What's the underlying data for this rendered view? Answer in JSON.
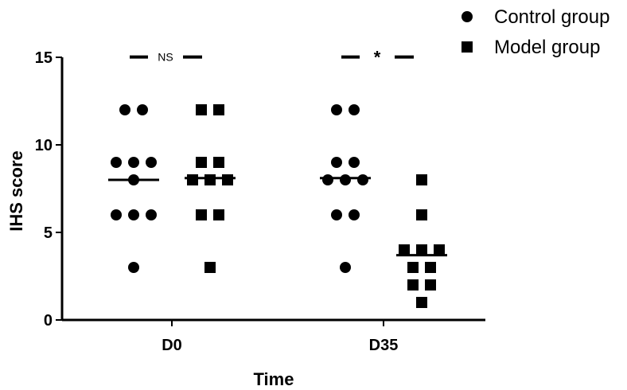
{
  "chart_data": {
    "type": "scatter",
    "title": "",
    "xlabel": "Time",
    "ylabel": "IHS score",
    "ylim": [
      0,
      15
    ],
    "yticks": [
      0,
      5,
      10,
      15
    ],
    "categories": [
      "D0",
      "D35"
    ],
    "legend": {
      "placement": "top-right"
    },
    "grid": false,
    "series": [
      {
        "name": "Control group",
        "marker": "circle",
        "color": "#000000",
        "groups": [
          {
            "category": "D0",
            "values": [
              12,
              12,
              9,
              9,
              9,
              8,
              6,
              6,
              6,
              3
            ],
            "median": 8
          },
          {
            "category": "D35",
            "values": [
              12,
              12,
              9,
              9,
              8,
              8,
              8,
              6,
              6,
              3
            ],
            "median": 8.1
          }
        ]
      },
      {
        "name": "Model group",
        "marker": "square",
        "color": "#000000",
        "groups": [
          {
            "category": "D0",
            "values": [
              12,
              12,
              9,
              9,
              8,
              8,
              8,
              6,
              6,
              3
            ],
            "median": 8.1
          },
          {
            "category": "D35",
            "values": [
              8,
              6,
              4,
              4,
              4,
              3,
              3,
              2,
              2,
              1
            ],
            "median": 3.7
          }
        ]
      }
    ],
    "annotations": [
      {
        "category": "D0",
        "text": "NS",
        "y": 15.2
      },
      {
        "category": "D35",
        "text": "*",
        "y": 15.2
      }
    ]
  }
}
